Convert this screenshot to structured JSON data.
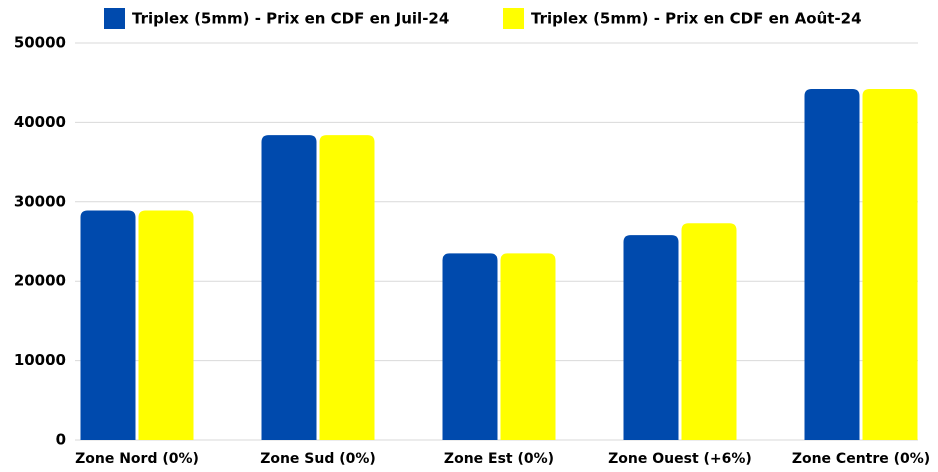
{
  "chart_data": {
    "type": "bar",
    "categories": [
      "Zone Nord (0%)",
      "Zone Sud (0%)",
      "Zone Est (0%)",
      "Zone Ouest (+6%)",
      "Zone Centre (0%)"
    ],
    "series": [
      {
        "name": "Triplex (5mm) - Prix en CDF en Juil-24",
        "color": "#004aad",
        "values": [
          28900,
          38400,
          23500,
          25800,
          44200
        ]
      },
      {
        "name": "Triplex (5mm) - Prix en CDF en Août-24",
        "color": "#ffff00",
        "values": [
          28900,
          38400,
          23500,
          27300,
          44200
        ]
      }
    ],
    "ylim": [
      0,
      50000
    ],
    "yticks": [
      0,
      10000,
      20000,
      30000,
      40000,
      50000
    ],
    "grid": true,
    "legend": "top"
  }
}
